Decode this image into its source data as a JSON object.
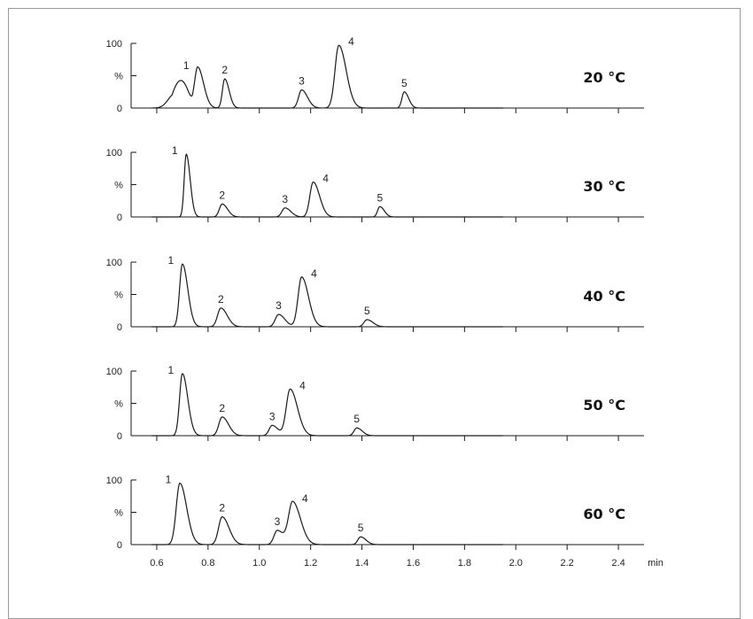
{
  "chart_data": [
    {
      "type": "line",
      "temperature_label": "20 °C",
      "ylim": [
        0,
        100
      ],
      "y_ticks": [
        "100",
        "%",
        "0"
      ],
      "peaks": [
        {
          "label": "",
          "rt": 0.67,
          "height": 22,
          "width": 0.025
        },
        {
          "label": "1",
          "rt": 0.76,
          "height": 60,
          "width": 0.012
        },
        {
          "label": "2",
          "rt": 0.865,
          "height": 45,
          "width": 0.009
        },
        {
          "label": "3",
          "rt": 1.165,
          "height": 28,
          "width": 0.012
        },
        {
          "label": "4",
          "rt": 1.31,
          "height": 97,
          "width": 0.015
        },
        {
          "label": "5",
          "rt": 1.565,
          "height": 25,
          "width": 0.009
        }
      ],
      "broad_hump": {
        "start": 0.66,
        "end": 0.75,
        "height": 28
      }
    },
    {
      "type": "line",
      "temperature_label": "30 °C",
      "ylim": [
        0,
        100
      ],
      "y_ticks": [
        "100",
        "%",
        "0"
      ],
      "peaks": [
        {
          "label": "1",
          "rt": 0.715,
          "height": 97,
          "width": 0.008
        },
        {
          "label": "2",
          "rt": 0.855,
          "height": 20,
          "width": 0.011
        },
        {
          "label": "3",
          "rt": 1.1,
          "height": 14,
          "width": 0.012
        },
        {
          "label": "4",
          "rt": 1.21,
          "height": 54,
          "width": 0.013
        },
        {
          "label": "5",
          "rt": 1.47,
          "height": 16,
          "width": 0.009
        }
      ]
    },
    {
      "type": "line",
      "temperature_label": "40 °C",
      "ylim": [
        0,
        100
      ],
      "y_ticks": [
        "100",
        "%",
        "0"
      ],
      "peaks": [
        {
          "label": "1",
          "rt": 0.7,
          "height": 97,
          "width": 0.011
        },
        {
          "label": "2",
          "rt": 0.85,
          "height": 29,
          "width": 0.013
        },
        {
          "label": "3",
          "rt": 1.075,
          "height": 19,
          "width": 0.013
        },
        {
          "label": "4",
          "rt": 1.165,
          "height": 77,
          "width": 0.014
        },
        {
          "label": "5",
          "rt": 1.42,
          "height": 11,
          "width": 0.012
        }
      ]
    },
    {
      "type": "line",
      "temperature_label": "50 °C",
      "ylim": [
        0,
        100
      ],
      "y_ticks": [
        "100",
        "%",
        "0"
      ],
      "peaks": [
        {
          "label": "1",
          "rt": 0.7,
          "height": 96,
          "width": 0.011
        },
        {
          "label": "2",
          "rt": 0.855,
          "height": 29,
          "width": 0.013
        },
        {
          "label": "3",
          "rt": 1.05,
          "height": 16,
          "width": 0.012
        },
        {
          "label": "4",
          "rt": 1.12,
          "height": 72,
          "width": 0.015
        },
        {
          "label": "5",
          "rt": 1.38,
          "height": 12,
          "width": 0.011
        }
      ]
    },
    {
      "type": "line",
      "temperature_label": "60 °C",
      "ylim": [
        0,
        100
      ],
      "y_ticks": [
        "100",
        "%",
        "0"
      ],
      "peaks": [
        {
          "label": "1",
          "rt": 0.69,
          "height": 95,
          "width": 0.014
        },
        {
          "label": "2",
          "rt": 0.855,
          "height": 43,
          "width": 0.014
        },
        {
          "label": "3",
          "rt": 1.07,
          "height": 22,
          "width": 0.013
        },
        {
          "label": "4",
          "rt": 1.13,
          "height": 66,
          "width": 0.016
        },
        {
          "label": "5",
          "rt": 1.395,
          "height": 12,
          "width": 0.011
        }
      ]
    }
  ],
  "x_axis": {
    "range": [
      0.5,
      2.5
    ],
    "ticks": [
      "0.6",
      "0.8",
      "1.0",
      "1.2",
      "1.4",
      "1.6",
      "1.8",
      "2.0",
      "2.2",
      "2.4"
    ],
    "tick_values": [
      0.6,
      0.8,
      1.0,
      1.2,
      1.4,
      1.6,
      1.8,
      2.0,
      2.2,
      2.4
    ],
    "unit": "min"
  }
}
